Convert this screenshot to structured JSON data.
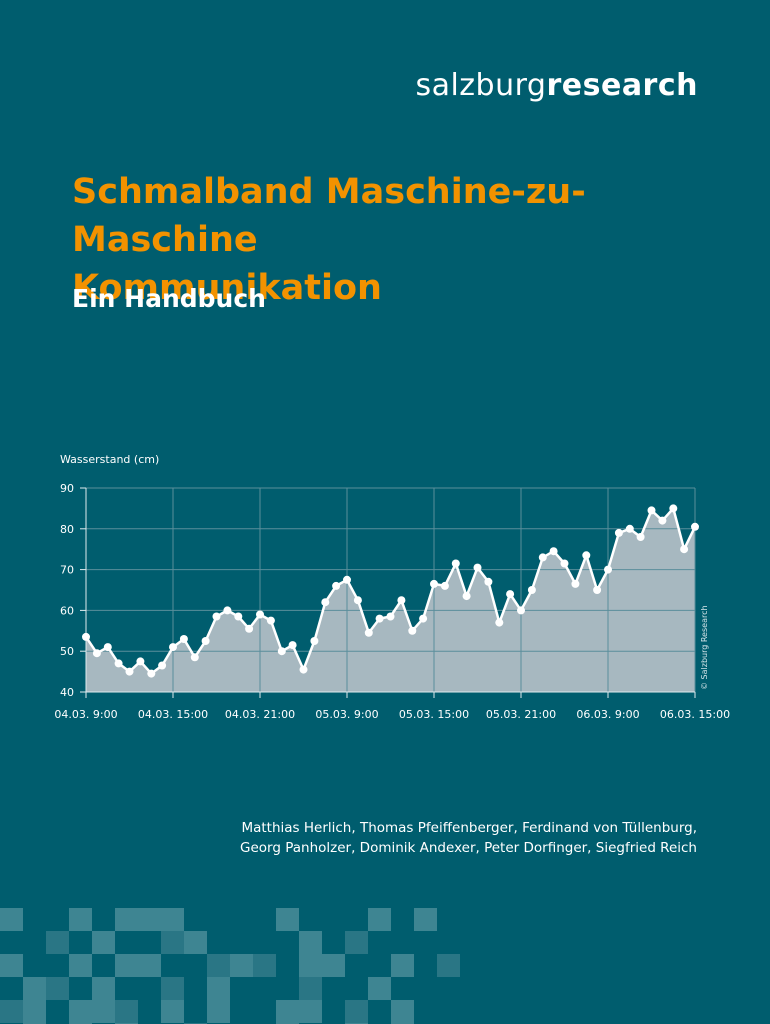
{
  "header": {
    "logo_light": "salzburg",
    "logo_bold": "research"
  },
  "cover": {
    "title_line1": "Schmalband Maschine-zu-Maschine",
    "title_line2": "Kommunikation",
    "subtitle": "Ein Handbuch"
  },
  "chart_data": {
    "type": "area",
    "ylabel": "Wasserstand (cm)",
    "xlabel": "",
    "title": "",
    "ylim": [
      40,
      90
    ],
    "yticks": [
      40,
      50,
      60,
      70,
      80,
      90
    ],
    "x_tick_labels": [
      "04.03. 9:00",
      "04.03. 15:00",
      "04.03. 21:00",
      "05.03. 9:00",
      "05.03. 15:00",
      "05.03. 21:00",
      "06.03. 9:00",
      "06.03. 15:00"
    ],
    "grid": true,
    "copyright": "© Salzburg Research",
    "series": [
      {
        "values": [
          53.5,
          49.5,
          51,
          47,
          45,
          47.5,
          44.5,
          46.5,
          51,
          53,
          48.5,
          52.5,
          58.5,
          60,
          58.5,
          55.5,
          59,
          57.5,
          50,
          51.5,
          45.5,
          52.5,
          62,
          66,
          67.5,
          62.5,
          54.5,
          58,
          58.5,
          62.5,
          55,
          58,
          66.5,
          66,
          71.5,
          63.5,
          70.5,
          67,
          57,
          64,
          60,
          65,
          73,
          74.5,
          71.5,
          66.5,
          73.5,
          65,
          70,
          79,
          80,
          78,
          84.5,
          82,
          85,
          75,
          80.5
        ]
      }
    ],
    "colors": {
      "fill": "#a7b8c0",
      "line": "#ffffff",
      "grid": "#5a8e9b",
      "axis": "#e0ecef"
    }
  },
  "authors": {
    "line1": "Matthias Herlich, Thomas Pfeiffenberger, Ferdinand von Tüllenburg,",
    "line2": "Georg Panholzer, Dominik Andexer, Peter Dorfinger, Siegfried Reich"
  },
  "colors": {
    "background": "#005d6e",
    "title": "#f29200",
    "pixel_light": "#3e8592",
    "pixel_mid": "#2a7685"
  }
}
